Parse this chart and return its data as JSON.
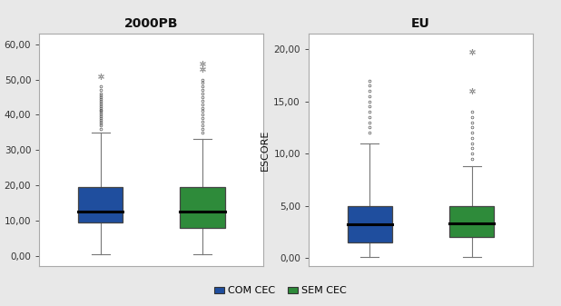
{
  "left_title": "2000PB",
  "right_title": "EU",
  "ylabel": "ESCORE",
  "legend_labels": [
    "COM CEC",
    "SEM CEC"
  ],
  "legend_colors": [
    "#1f4e9e",
    "#2e8b3a"
  ],
  "background_color": "#e8e8e8",
  "panel_background": "#ffffff",
  "left": {
    "ylim": [
      -3,
      63
    ],
    "yticks": [
      0,
      10,
      20,
      30,
      40,
      50,
      60
    ],
    "ytick_labels": [
      "0,00",
      "10,00",
      "20,00",
      "30,00",
      "40,00",
      "50,00",
      "60,00"
    ],
    "box1": {
      "whisker_low": 0.3,
      "q1": 9.5,
      "median": 12.5,
      "q3": 19.5,
      "whisker_high": 35.0,
      "outliers_circle": [
        36.0,
        37.0,
        37.5,
        38.0,
        38.5,
        39.0,
        39.5,
        40.0,
        40.5,
        41.0,
        41.5,
        42.0,
        42.5,
        43.0,
        43.5,
        44.0,
        44.5,
        45.0,
        45.5,
        46.0,
        47.0,
        48.0
      ],
      "outliers_star": [
        51.0
      ],
      "color": "#1f4e9e"
    },
    "box2": {
      "whisker_low": 0.3,
      "q1": 8.0,
      "median": 12.5,
      "q3": 19.5,
      "whisker_high": 33.0,
      "outliers_circle": [
        35.0,
        36.0,
        37.0,
        38.0,
        39.0,
        40.0,
        41.0,
        42.0,
        43.0,
        44.0,
        45.0,
        46.0,
        47.0,
        48.0,
        49.0,
        50.0
      ],
      "outliers_star": [
        53.0,
        54.5
      ],
      "color": "#2e8b3a"
    }
  },
  "right": {
    "ylim": [
      -0.8,
      21.5
    ],
    "yticks": [
      0,
      5,
      10,
      15,
      20
    ],
    "ytick_labels": [
      "0,00",
      "5,00",
      "10,00",
      "15,00",
      "20,00"
    ],
    "box1": {
      "whisker_low": 0.1,
      "q1": 1.5,
      "median": 3.2,
      "q3": 5.0,
      "whisker_high": 11.0,
      "outliers_circle": [
        12.0,
        12.5,
        13.0,
        13.5,
        14.0,
        14.5,
        15.0,
        15.5,
        16.0,
        16.5,
        17.0
      ],
      "outliers_star": [],
      "color": "#1f4e9e"
    },
    "box2": {
      "whisker_low": 0.1,
      "q1": 2.0,
      "median": 3.3,
      "q3": 5.0,
      "whisker_high": 8.8,
      "outliers_circle": [
        9.5,
        10.0,
        10.5,
        11.0,
        11.5,
        12.0,
        12.5,
        13.0,
        13.5,
        14.0
      ],
      "outliers_star": [
        16.0,
        19.8
      ],
      "color": "#2e8b3a"
    }
  }
}
